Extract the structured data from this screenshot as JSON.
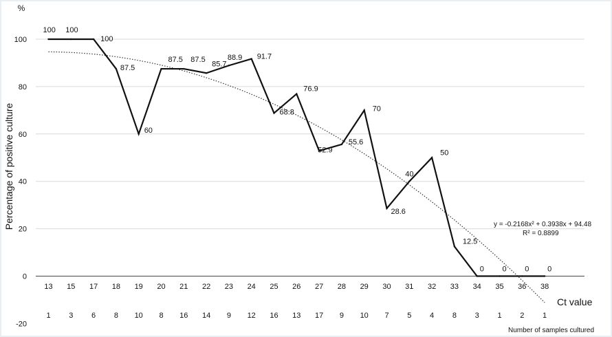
{
  "chart_data": {
    "type": "line",
    "ylabel": "Percentage of positive culture",
    "y_unit": "%",
    "xlabel": "Ct value",
    "secondary_xlabel": "Number of samples cultured",
    "ylim": [
      -20,
      100
    ],
    "y_ticks": [
      -20,
      0,
      20,
      40,
      60,
      80,
      100
    ],
    "grid": true,
    "categories": [
      "13",
      "15",
      "17",
      "18",
      "19",
      "20",
      "21",
      "22",
      "23",
      "24",
      "25",
      "26",
      "27",
      "28",
      "29",
      "30",
      "31",
      "32",
      "33",
      "34",
      "35",
      "36",
      "38"
    ],
    "samples": [
      "1",
      "3",
      "6",
      "8",
      "10",
      "8",
      "16",
      "14",
      "9",
      "12",
      "16",
      "13",
      "17",
      "9",
      "10",
      "7",
      "5",
      "4",
      "8",
      "3",
      "1",
      "2",
      "1"
    ],
    "series": [
      {
        "values": [
          100,
          100,
          100,
          87.5,
          60,
          87.5,
          87.5,
          85.7,
          88.9,
          91.7,
          68.8,
          76.9,
          52.9,
          55.6,
          70,
          28.6,
          40,
          50,
          12.5,
          0,
          0,
          0,
          0
        ],
        "labels": [
          "100",
          "100",
          "100",
          "87.5",
          "60",
          "87.5",
          "87.5",
          "85.7",
          "88.9",
          "91.7",
          "68.8",
          "76.9",
          "52.9",
          "55.6",
          "70",
          "28.6",
          "40",
          "50",
          "12.5",
          "0",
          "0",
          "0",
          "0"
        ]
      }
    ],
    "trendline": {
      "type": "polynomial",
      "coefficients": [
        -0.2168,
        0.3938,
        94.48
      ],
      "equation": "y = -0.2168x² + 0.3938x + 94.48",
      "r_squared": "R² = 0.8899"
    }
  }
}
